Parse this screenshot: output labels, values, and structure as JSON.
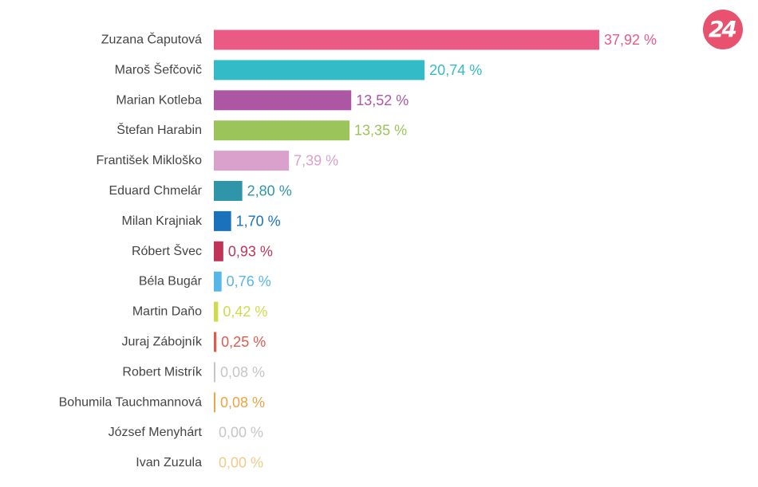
{
  "brand": {
    "logo_text": "24",
    "logo_color": "#e8526f"
  },
  "chart_data": {
    "type": "bar",
    "orientation": "horizontal",
    "title": "",
    "xlabel": "",
    "ylabel": "",
    "xlim": [
      0,
      37.92
    ],
    "grid": false,
    "legend": "none",
    "categories": [
      "Zuzana Čaputová",
      "Maroš Šefčovič",
      "Marian Kotleba",
      "Štefan Harabin",
      "František Mikloško",
      "Eduard Chmelár",
      "Milan Krajniak",
      "Róbert Švec",
      "Béla Bugár",
      "Martin Daňo",
      "Juraj Zábojník",
      "Robert Mistrík",
      "Bohumila Tauchmannová",
      "József Menyhárt",
      "Ivan Zuzula"
    ],
    "values": [
      37.92,
      20.74,
      13.52,
      13.35,
      7.39,
      2.8,
      1.7,
      0.93,
      0.76,
      0.42,
      0.25,
      0.08,
      0.08,
      0.0,
      0.0
    ],
    "value_labels": [
      "37,92 %",
      "20,74 %",
      "13,52 %",
      "13,35 %",
      "7,39 %",
      "2,80 %",
      "1,70 %",
      "0,93 %",
      "0,76 %",
      "0,42 %",
      "0,25 %",
      "0,08 %",
      "0,08 %",
      "0,00 %",
      "0,00 %"
    ],
    "colors": [
      "#ea5a85",
      "#33bcc7",
      "#ad56a4",
      "#9bc55a",
      "#d9a1cb",
      "#2e96a8",
      "#1a72bd",
      "#bf3457",
      "#55b7e6",
      "#cfdb4c",
      "#dd5b4b",
      "#c6c6c6",
      "#eca444",
      "#c6c6c6",
      "#f3c98a"
    ]
  }
}
